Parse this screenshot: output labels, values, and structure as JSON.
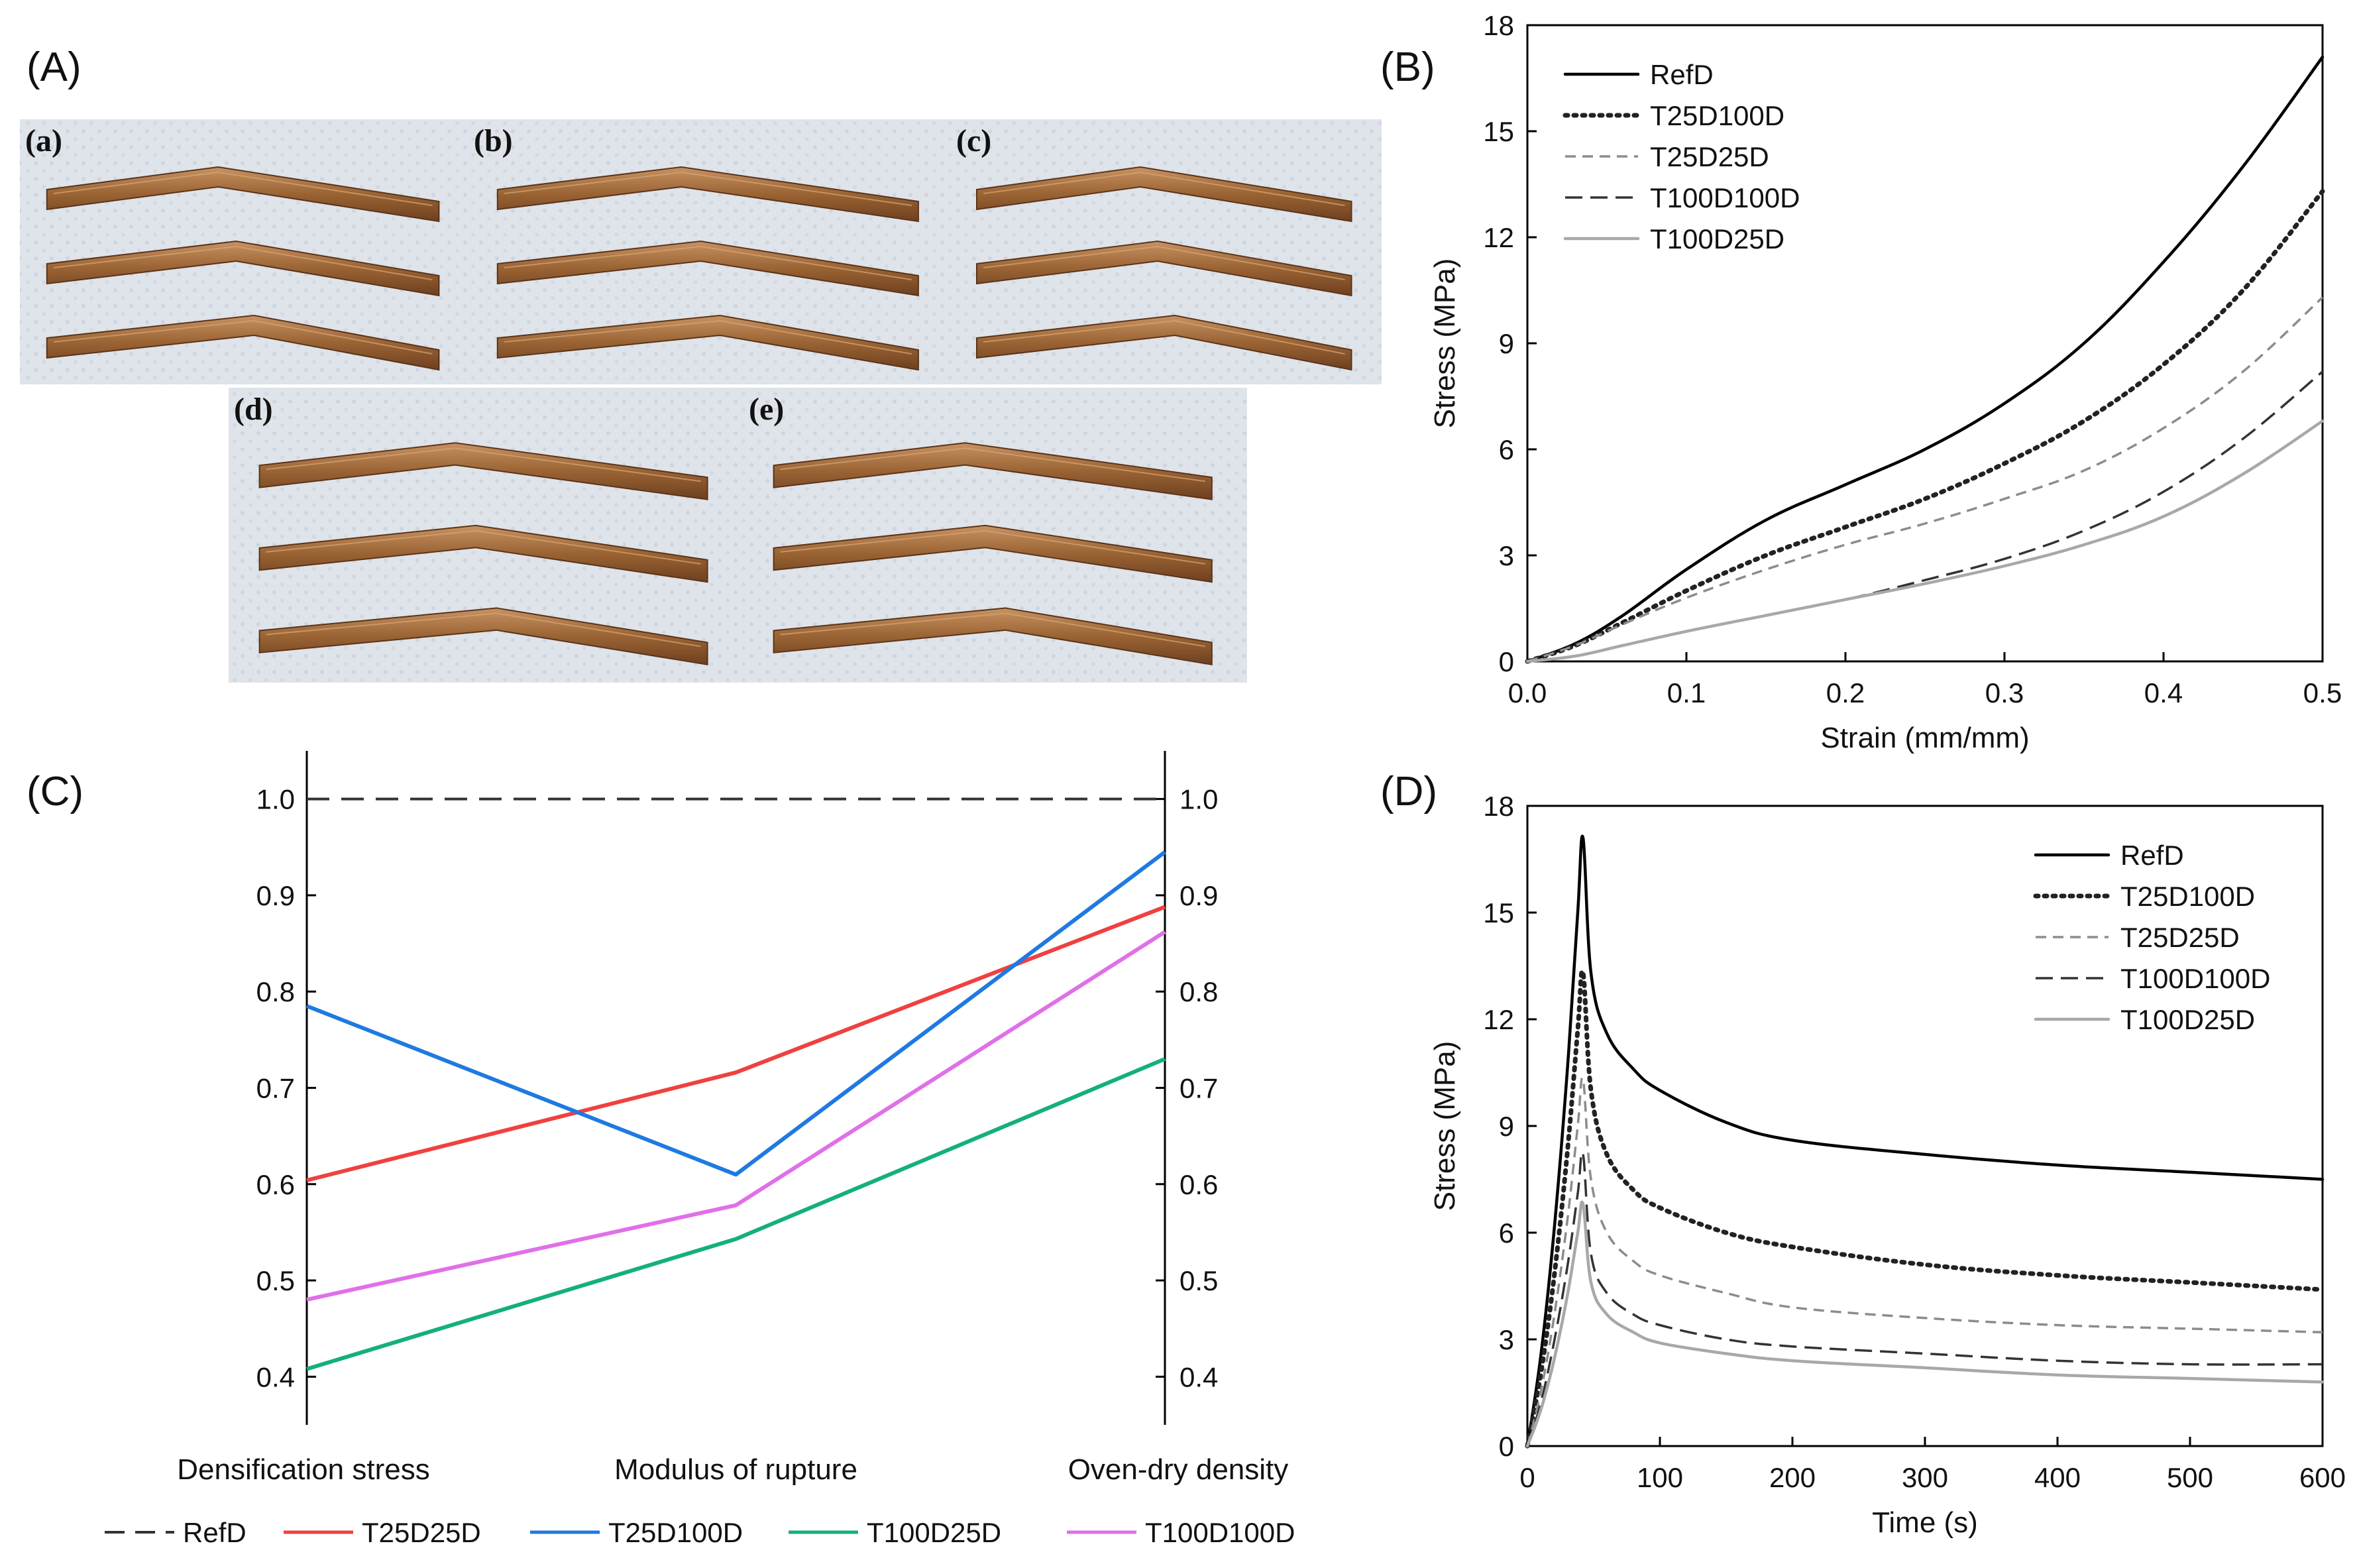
{
  "panel_labels": {
    "A": "(A)",
    "B": "(B)",
    "C": "(C)",
    "D": "(D)"
  },
  "photos": [
    {
      "label": "(a)",
      "desc": "three fractured densified wood strips"
    },
    {
      "label": "(b)",
      "desc": "three fractured densified wood strips"
    },
    {
      "label": "(c)",
      "desc": "three fractured densified wood strips"
    },
    {
      "label": "(d)",
      "desc": "three fractured densified wood strips"
    },
    {
      "label": "(e)",
      "desc": "three fractured densified wood strips"
    }
  ],
  "colors": {
    "RefD_mono": "#000000",
    "grey": "#8c8c8c",
    "lightgrey": "#a8a8a8",
    "dark": "#333333",
    "red": "#f04040",
    "blue": "#1f7ae0",
    "green": "#14b07a",
    "magenta": "#e070e8",
    "wood": "#9a6b3c"
  },
  "chart_data": [
    {
      "id": "B",
      "type": "line",
      "title": "",
      "xlabel": "Strain (mm/mm)",
      "ylabel": "Stress (MPa)",
      "xlim": [
        0.0,
        0.5
      ],
      "ylim": [
        0,
        18
      ],
      "xticks": [
        0.0,
        0.1,
        0.2,
        0.3,
        0.4,
        0.5
      ],
      "xtick_labels": [
        "0.0",
        "0.1",
        "0.2",
        "0.3",
        "0.4",
        "0.5"
      ],
      "yticks": [
        0,
        3,
        6,
        9,
        12,
        15,
        18
      ],
      "ytick_labels": [
        "0",
        "3",
        "6",
        "9",
        "12",
        "15",
        "18"
      ],
      "legend_position": "top-left",
      "series": [
        {
          "name": "RefD",
          "style": "solid",
          "color": "#000000",
          "x": [
            0,
            0.03,
            0.06,
            0.1,
            0.15,
            0.2,
            0.25,
            0.3,
            0.35,
            0.4,
            0.45,
            0.5
          ],
          "y": [
            0,
            0.5,
            1.3,
            2.6,
            4.0,
            5.0,
            6.0,
            7.3,
            9.0,
            11.3,
            14.0,
            17.1
          ]
        },
        {
          "name": "T25D100D",
          "style": "dotted",
          "color": "#222222",
          "x": [
            0,
            0.03,
            0.06,
            0.1,
            0.15,
            0.2,
            0.25,
            0.3,
            0.35,
            0.4,
            0.45,
            0.5
          ],
          "y": [
            0,
            0.45,
            1.1,
            2.0,
            3.0,
            3.8,
            4.6,
            5.6,
            6.8,
            8.4,
            10.5,
            13.3
          ]
        },
        {
          "name": "T25D25D",
          "style": "dashed",
          "color": "#8c8c8c",
          "x": [
            0,
            0.03,
            0.06,
            0.1,
            0.15,
            0.2,
            0.25,
            0.3,
            0.35,
            0.4,
            0.45,
            0.5
          ],
          "y": [
            0,
            0.45,
            1.05,
            1.8,
            2.6,
            3.3,
            3.9,
            4.6,
            5.4,
            6.6,
            8.2,
            10.3
          ]
        },
        {
          "name": "T100D100D",
          "style": "longdash",
          "color": "#333333",
          "x": [
            0,
            0.03,
            0.06,
            0.1,
            0.15,
            0.2,
            0.25,
            0.3,
            0.35,
            0.4,
            0.45,
            0.5
          ],
          "y": [
            0,
            0.15,
            0.45,
            0.85,
            1.3,
            1.75,
            2.3,
            2.9,
            3.7,
            4.8,
            6.3,
            8.2
          ]
        },
        {
          "name": "T100D25D",
          "style": "solid",
          "color": "#a8a8a8",
          "x": [
            0,
            0.03,
            0.06,
            0.1,
            0.15,
            0.2,
            0.25,
            0.3,
            0.35,
            0.4,
            0.45,
            0.5
          ],
          "y": [
            0,
            0.15,
            0.45,
            0.85,
            1.3,
            1.75,
            2.2,
            2.7,
            3.3,
            4.1,
            5.3,
            6.8
          ]
        }
      ]
    },
    {
      "id": "C",
      "type": "line",
      "title": "",
      "xlabel": "",
      "ylabel": "",
      "categories": [
        "Densification stress",
        "Modulus of rupture",
        "Oven-dry density"
      ],
      "ylim": [
        0.35,
        1.05
      ],
      "yticks": [
        0.4,
        0.5,
        0.6,
        0.7,
        0.8,
        0.9,
        1.0
      ],
      "ytick_labels": [
        "0.4",
        "0.5",
        "0.6",
        "0.7",
        "0.8",
        "0.9",
        "1.0"
      ],
      "right_axis": true,
      "legend_position": "bottom",
      "series": [
        {
          "name": "RefD",
          "style": "dashed",
          "color": "#333333",
          "values": [
            1.0,
            1.0,
            1.0
          ]
        },
        {
          "name": "T25D25D",
          "style": "solid",
          "color": "#f04040",
          "values": [
            0.604,
            0.716,
            0.888
          ]
        },
        {
          "name": "T25D100D",
          "style": "solid",
          "color": "#1f7ae0",
          "values": [
            0.785,
            0.61,
            0.945
          ]
        },
        {
          "name": "T100D25D",
          "style": "solid",
          "color": "#14b07a",
          "values": [
            0.408,
            0.543,
            0.73
          ]
        },
        {
          "name": "T100D100D",
          "style": "solid",
          "color": "#e070e8",
          "values": [
            0.48,
            0.578,
            0.862
          ]
        }
      ]
    },
    {
      "id": "D",
      "type": "line",
      "title": "",
      "xlabel": "Time (s)",
      "ylabel": "Stress (MPa)",
      "xlim": [
        0,
        600
      ],
      "ylim": [
        0,
        18
      ],
      "xticks": [
        0,
        100,
        200,
        300,
        400,
        500,
        600
      ],
      "xtick_labels": [
        "0",
        "100",
        "200",
        "300",
        "400",
        "500",
        "600"
      ],
      "yticks": [
        0,
        3,
        6,
        9,
        12,
        15,
        18
      ],
      "ytick_labels": [
        "0",
        "3",
        "6",
        "9",
        "12",
        "15",
        "18"
      ],
      "legend_position": "top-right",
      "series": [
        {
          "name": "RefD",
          "style": "solid",
          "color": "#000000",
          "x": [
            0,
            10,
            20,
            30,
            38,
            42,
            48,
            60,
            80,
            100,
            150,
            200,
            300,
            400,
            500,
            600
          ],
          "y": [
            0,
            2.5,
            6.0,
            10.5,
            15.0,
            17.1,
            13.3,
            11.6,
            10.6,
            10.0,
            9.1,
            8.6,
            8.2,
            7.9,
            7.7,
            7.5
          ]
        },
        {
          "name": "T25D100D",
          "style": "dotted",
          "color": "#222222",
          "x": [
            0,
            10,
            20,
            30,
            38,
            42,
            48,
            60,
            80,
            100,
            150,
            200,
            300,
            400,
            500,
            600
          ],
          "y": [
            0,
            2.0,
            4.7,
            8.2,
            11.7,
            13.3,
            10.0,
            8.2,
            7.2,
            6.7,
            6.0,
            5.6,
            5.1,
            4.8,
            4.6,
            4.4
          ]
        },
        {
          "name": "T25D25D",
          "style": "dashed",
          "color": "#8c8c8c",
          "x": [
            0,
            10,
            20,
            30,
            38,
            42,
            48,
            60,
            80,
            100,
            150,
            200,
            300,
            400,
            500,
            600
          ],
          "y": [
            0,
            1.5,
            3.6,
            6.3,
            9.0,
            10.3,
            7.5,
            6.0,
            5.2,
            4.8,
            4.3,
            3.9,
            3.6,
            3.4,
            3.3,
            3.2
          ]
        },
        {
          "name": "T100D100D",
          "style": "longdash",
          "color": "#333333",
          "x": [
            0,
            10,
            20,
            30,
            38,
            42,
            48,
            60,
            80,
            100,
            150,
            200,
            300,
            400,
            500,
            600
          ],
          "y": [
            0,
            1.2,
            2.9,
            5.0,
            7.1,
            8.2,
            5.4,
            4.3,
            3.7,
            3.4,
            3.0,
            2.8,
            2.6,
            2.4,
            2.3,
            2.3
          ]
        },
        {
          "name": "T100D25D",
          "style": "solid",
          "color": "#a8a8a8",
          "x": [
            0,
            10,
            20,
            30,
            38,
            42,
            48,
            60,
            80,
            100,
            150,
            200,
            300,
            400,
            500,
            600
          ],
          "y": [
            0,
            1.0,
            2.4,
            4.2,
            6.0,
            6.8,
            4.6,
            3.7,
            3.2,
            2.9,
            2.6,
            2.4,
            2.2,
            2.0,
            1.9,
            1.8
          ]
        }
      ]
    }
  ]
}
